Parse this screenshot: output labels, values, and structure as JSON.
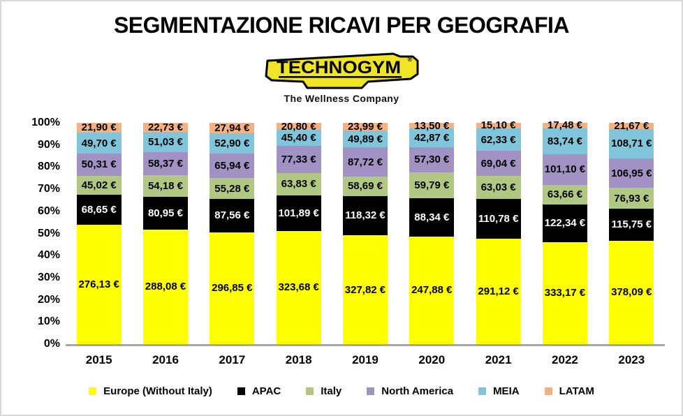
{
  "title": "SEGMENTAZIONE RICAVI PER GEOGRAFIA",
  "logo": {
    "brand": "TECHNOGYM",
    "registered_mark": "®",
    "tagline": "The Wellness Company",
    "banner_color": "#EFE426",
    "outline_color": "#000000"
  },
  "chart_data": {
    "type": "bar",
    "variant": "stacked-100-percent",
    "title": "SEGMENTAZIONE RICAVI PER GEOGRAFIA",
    "categories": [
      "2015",
      "2016",
      "2017",
      "2018",
      "2019",
      "2020",
      "2021",
      "2022",
      "2023"
    ],
    "series": [
      {
        "name": "Europe (Without Italy)",
        "color": "#FFFF00",
        "label_color": "#000000",
        "values": [
          276.13,
          288.08,
          296.85,
          323.68,
          327.82,
          247.88,
          291.12,
          333.17,
          378.09
        ]
      },
      {
        "name": "APAC",
        "color": "#000000",
        "label_color": "#FFFFFF",
        "values": [
          68.65,
          80.95,
          87.56,
          101.89,
          118.32,
          88.34,
          110.78,
          122.34,
          115.75
        ]
      },
      {
        "name": "Italy",
        "color": "#B1C883",
        "label_color": "#000000",
        "values": [
          45.02,
          54.18,
          55.28,
          63.83,
          58.69,
          59.79,
          63.03,
          63.66,
          76.93
        ]
      },
      {
        "name": "North America",
        "color": "#A292C4",
        "label_color": "#000000",
        "values": [
          50.31,
          58.37,
          65.94,
          77.33,
          87.72,
          57.3,
          69.04,
          101.1,
          106.95
        ]
      },
      {
        "name": "MEIA",
        "color": "#80C5DA",
        "label_color": "#000000",
        "values": [
          49.7,
          51.03,
          52.9,
          45.4,
          49.89,
          42.87,
          62.33,
          83.74,
          108.71
        ]
      },
      {
        "name": "LATAM",
        "color": "#F4B183",
        "label_color": "#000000",
        "values": [
          21.9,
          22.73,
          27.94,
          20.8,
          23.99,
          13.5,
          15.1,
          17.48,
          21.67
        ]
      }
    ],
    "y_axis": {
      "ticks": [
        "0%",
        "10%",
        "20%",
        "30%",
        "40%",
        "50%",
        "60%",
        "70%",
        "80%",
        "90%",
        "100%"
      ],
      "min": 0,
      "max": 100,
      "gridlines": false
    },
    "value_suffix": " €",
    "decimal_separator": ",",
    "axis_line_color": "#A6A6A6",
    "legend_position": "bottom"
  }
}
